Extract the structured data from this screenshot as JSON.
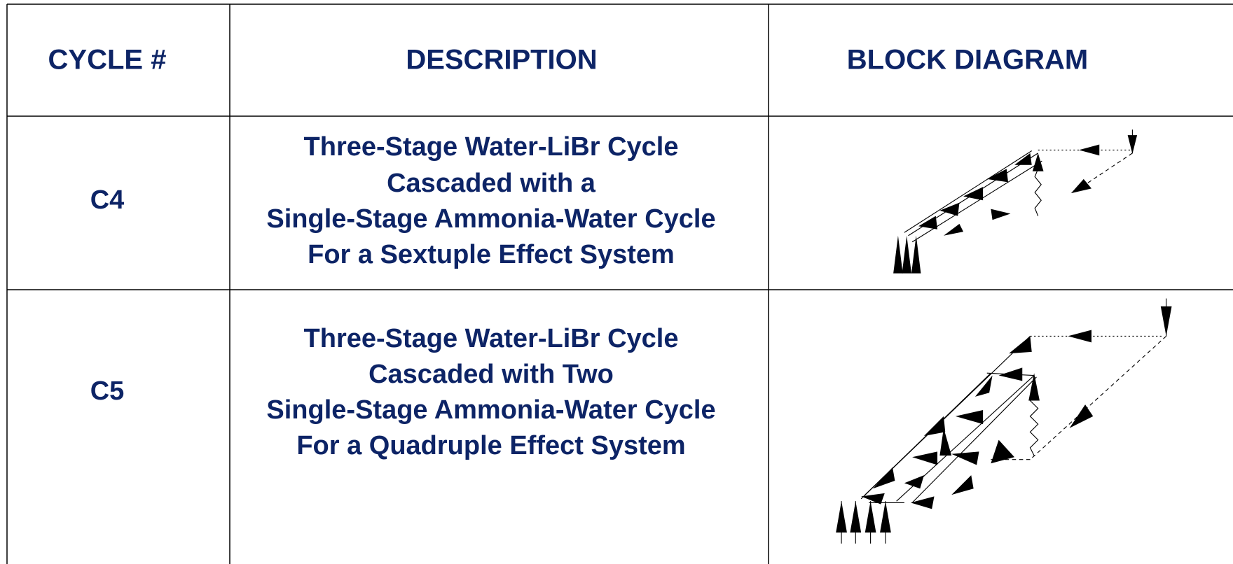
{
  "table": {
    "header": [
      "CYCLE #",
      "DESCRIPTION",
      "BLOCK DIAGRAM"
    ],
    "rows": [
      {
        "cycle": "C4",
        "description": [
          "Three-Stage Water-LiBr Cycle",
          "Cascaded with a",
          "Single-Stage Ammonia-Water Cycle",
          "For a Sextuple Effect System"
        ]
      },
      {
        "cycle": "C5",
        "description": [
          "Three-Stage Water-LiBr Cycle",
          "Cascaded with Two",
          "Single-Stage Ammonia-Water Cycle",
          "For a Quadruple Effect System"
        ]
      }
    ]
  }
}
